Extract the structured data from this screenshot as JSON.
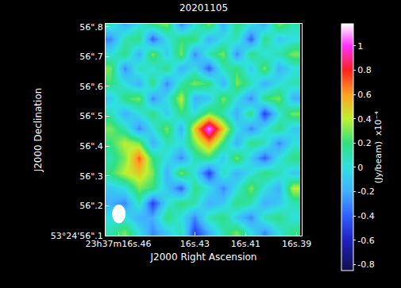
{
  "chart_data": {
    "type": "heatmap",
    "title": "20201105",
    "x_label": "J2000 Right Ascension",
    "y_label": "J2000 Declination",
    "x": [
      16.463,
      16.4575,
      16.452,
      16.4465,
      16.441,
      16.4355,
      16.43,
      16.4245,
      16.419,
      16.4135,
      16.408,
      16.4025,
      16.397,
      16.3915
    ],
    "y": [
      56.11,
      56.16,
      56.21,
      56.26,
      56.31,
      56.36,
      56.41,
      56.46,
      56.51,
      56.56,
      56.61,
      56.66,
      56.71,
      56.76,
      56.81
    ],
    "cells": [
      [
        0.1,
        0.3,
        0,
        -0.3,
        -0.1,
        0.1,
        -0.5,
        -0.2,
        0.1,
        0.3,
        0,
        -0.3,
        0,
        0.2
      ],
      [
        0,
        0,
        -0.2,
        -0.2,
        0.2,
        0,
        -0.3,
        0.1,
        0.2,
        -0.1,
        -0.3,
        0.1,
        0.2,
        0
      ],
      [
        -0.2,
        -0.3,
        0.1,
        -0.5,
        0,
        0.2,
        0.1,
        -0.2,
        -0.1,
        0.2,
        0.1,
        -0.2,
        -0.1,
        0.1
      ],
      [
        -0.1,
        0,
        0.3,
        0.2,
        -0.1,
        -0.4,
        0.2,
        0,
        -0.3,
        0,
        0.3,
        0,
        -0.2,
        0.4
      ],
      [
        0.2,
        0.4,
        0.5,
        0.3,
        -0.2,
        0.3,
        0,
        -0.5,
        0.1,
        -0.2,
        0,
        0.2,
        0.1,
        -0.1
      ],
      [
        0.1,
        0.3,
        0.7,
        0.2,
        0,
        -0.3,
        0.1,
        0.2,
        -0.1,
        0.3,
        -0.1,
        -0.4,
        0,
        0.2
      ],
      [
        0.2,
        0.4,
        0.3,
        -0.2,
        0.1,
        0,
        0.3,
        0.6,
        0.2,
        -0.2,
        0.2,
        0.1,
        -0.3,
        0
      ],
      [
        0.3,
        0.1,
        -0.3,
        0,
        0.3,
        -0.2,
        0.5,
        1.1,
        0.5,
        0,
        -0.3,
        0,
        0.2,
        -0.1
      ],
      [
        0.1,
        -0.2,
        0,
        0.2,
        -0.1,
        0.2,
        0,
        0.3,
        0.1,
        -0.2,
        0.2,
        -0.5,
        0,
        0.3
      ],
      [
        -0.1,
        0.2,
        0.3,
        -0.3,
        0,
        0.4,
        -0.2,
        -0.1,
        0.3,
        0,
        -0.3,
        0.2,
        0.3,
        -0.2
      ],
      [
        0.2,
        0,
        -0.2,
        0.2,
        -0.3,
        0.1,
        0.3,
        0.2,
        -0.2,
        0.3,
        0.1,
        -0.2,
        0,
        0.1
      ],
      [
        0.3,
        -0.3,
        0.1,
        0,
        0.2,
        -0.2,
        0,
        -0.4,
        0.1,
        0.2,
        -0.1,
        0.3,
        -0.2,
        0
      ],
      [
        0,
        0.2,
        -0.2,
        0.3,
        -0.1,
        0.3,
        -0.3,
        0.1,
        0.3,
        -0.3,
        0.2,
        0,
        0.1,
        0.3
      ],
      [
        -0.3,
        0.1,
        0.2,
        -0.4,
        0,
        0.2,
        0.2,
        -0.2,
        0,
        0.1,
        -0.4,
        0.2,
        -0.1,
        0
      ],
      [
        0.1,
        -0.2,
        0,
        0.2,
        0.3,
        -0.3,
        0,
        0.3,
        -0.2,
        0.2,
        0,
        -0.2,
        0.3,
        0.1
      ]
    ],
    "xlim": [
      16.465,
      16.388
    ],
    "xticks": [
      {
        "value": 16.46,
        "label": "23h37m16s.46"
      },
      {
        "value": 16.43,
        "label": "16s.43"
      },
      {
        "value": 16.41,
        "label": "16s.41"
      },
      {
        "value": 16.39,
        "label": "16s.39"
      }
    ],
    "ylim": [
      56.1,
      56.81
    ],
    "yticks": [
      {
        "value": 56.1,
        "label": "53°24'56\".1"
      },
      {
        "value": 56.2,
        "label": "56\".2"
      },
      {
        "value": 56.3,
        "label": "56\".3"
      },
      {
        "value": 56.4,
        "label": "56\".4"
      },
      {
        "value": 56.5,
        "label": "56\".5"
      },
      {
        "value": 56.6,
        "label": "56\".6"
      },
      {
        "value": 56.7,
        "label": "56\".7"
      },
      {
        "value": 56.8,
        "label": "56\".8"
      }
    ],
    "colorbar": {
      "label": "(Jy/beam)  x10⁻⁴",
      "range": [
        -0.85,
        1.18
      ],
      "ticks": [
        -0.8,
        -0.6,
        -0.4,
        -0.2,
        0,
        0.2,
        0.4,
        0.6,
        0.8,
        1
      ]
    }
  }
}
